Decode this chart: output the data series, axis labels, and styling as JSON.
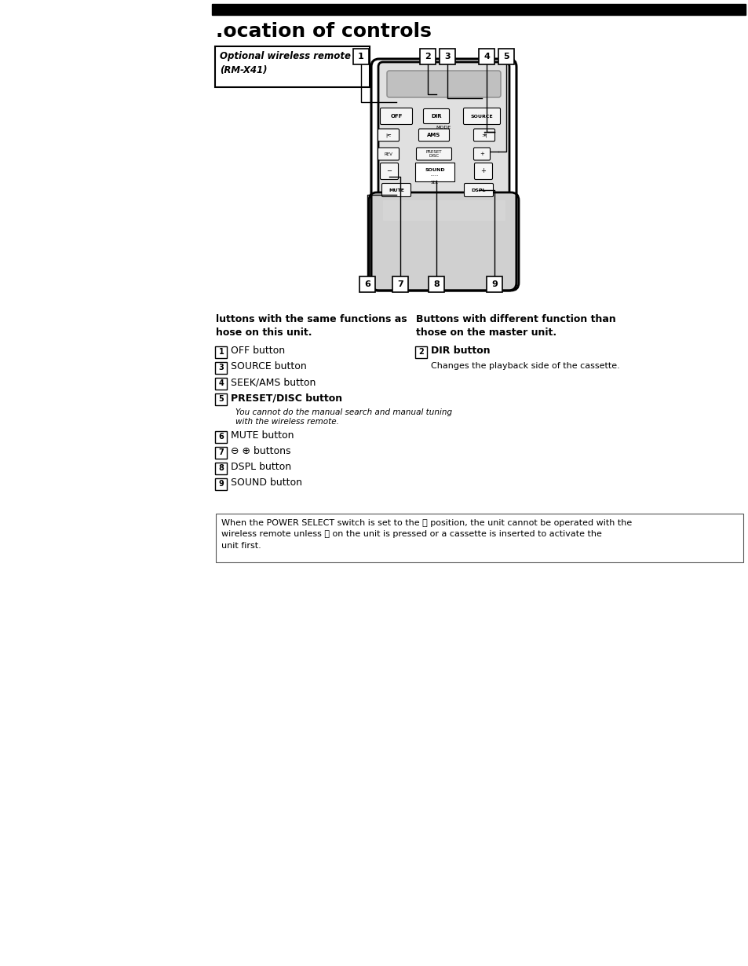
{
  "page_bg": "#ffffff",
  "title_bar_color": "#000000",
  "title_text": ".ocation of controls",
  "label_box_line1": "Optional wireless remote",
  "label_box_line2": "(RM-X41)",
  "left_header": "luttons with the same functions as\nhose on this unit.",
  "right_header": "Buttons with different function than\nthose on the master unit.",
  "left_items": [
    {
      "num": "1",
      "text": "OFF button",
      "bold": false,
      "sub": null
    },
    {
      "num": "3",
      "text": "SOURCE button",
      "bold": false,
      "sub": null
    },
    {
      "num": "4",
      "text": "SEEK/AMS button",
      "bold": false,
      "sub": null
    },
    {
      "num": "5",
      "text": "PRESET/DISC button",
      "bold": true,
      "sub": "You cannot do the manual search and manual tuning\nwith the wireless remote."
    },
    {
      "num": "6",
      "text": "MUTE button",
      "bold": false,
      "sub": null
    },
    {
      "num": "7",
      "text": "⊖ ⊕ buttons",
      "bold": false,
      "sub": null
    },
    {
      "num": "8",
      "text": "DSPL button",
      "bold": false,
      "sub": null
    },
    {
      "num": "9",
      "text": "SOUND button",
      "bold": false,
      "sub": null
    }
  ],
  "right_items": [
    {
      "num": "2",
      "text": "DIR button",
      "bold": true,
      "sub": "Changes the playback side of the cassette."
    }
  ],
  "note_text": "When the POWER SELECT switch is set to the Ⓑ position, the unit cannot be operated with the\nwireless remote unless Ⓢ on the unit is pressed or a cassette is inserted to activate the\nunit first."
}
